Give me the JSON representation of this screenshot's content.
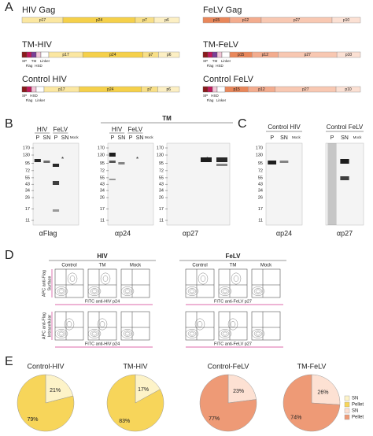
{
  "panel_a": {
    "label": "A",
    "constructs": [
      {
        "title": "HIV Gag",
        "family": "hiv",
        "prefix": [],
        "domains": [
          "p17",
          "p24",
          "p7",
          "p6"
        ]
      },
      {
        "title": "TM-HIV",
        "family": "hiv",
        "prefix": [
          "SP",
          "Flag",
          "TM",
          "HSD",
          "Linker"
        ],
        "domains": [
          "p17",
          "p24",
          "p7",
          "p6"
        ]
      },
      {
        "title": "Control HIV",
        "family": "hiv",
        "prefix": [
          "SP",
          "Flag",
          "HSD",
          "Linker"
        ],
        "domains": [
          "p17",
          "p24",
          "p7",
          "p6"
        ]
      },
      {
        "title": "FeLV Gag",
        "family": "felv",
        "prefix": [],
        "domains": [
          "p15",
          "p12",
          "p27",
          "p10"
        ]
      },
      {
        "title": "TM-FeLV",
        "family": "felv",
        "prefix": [
          "SP",
          "Flag",
          "TM",
          "HSD",
          "Linker"
        ],
        "domains": [
          "p15",
          "p12",
          "p27",
          "p10"
        ]
      },
      {
        "title": "Control FeLV",
        "family": "felv",
        "prefix": [
          "SP",
          "Flag",
          "HSD",
          "Linker"
        ],
        "domains": [
          "p15",
          "p12",
          "p27",
          "p10"
        ]
      }
    ]
  },
  "panel_b": {
    "label": "B",
    "group_title": "TM",
    "markers": [
      170,
      130,
      95,
      72,
      55,
      43,
      34,
      26,
      17,
      11
    ],
    "blots": [
      {
        "antibody": "αFlag",
        "groups": [
          "HIV",
          "FeLV"
        ],
        "lanes": [
          "P",
          "SN",
          "P",
          "SN",
          "Mock"
        ]
      },
      {
        "antibody": "αp24",
        "groups": [
          "HIV",
          "FeLV"
        ],
        "lanes": [
          "P",
          "SN",
          "P",
          "SN",
          "Mock"
        ]
      },
      {
        "antibody": "αp27",
        "groups": [],
        "lanes": []
      }
    ]
  },
  "panel_c": {
    "label": "C",
    "markers": [
      170,
      130,
      95,
      72,
      55,
      43,
      34,
      26,
      17,
      11
    ],
    "blots": [
      {
        "title": "Control HIV",
        "lanes": [
          "P",
          "SN",
          "Mock"
        ],
        "antibody": "αp24"
      },
      {
        "title": "Control FeLV",
        "lanes": [
          "P",
          "SN",
          "Mock"
        ],
        "antibody": "αp27"
      }
    ]
  },
  "panel_d": {
    "label": "D",
    "conditions": [
      "Control",
      "TM",
      "Mock"
    ],
    "groups": [
      {
        "title": "HIV",
        "x_axis": "FITC anti-HIV p24"
      },
      {
        "title": "FeLV",
        "x_axis": "FITC anti-FeLV p27"
      }
    ],
    "rows": [
      [
        "APC anti-Flag",
        "Surface"
      ],
      [
        "APC anti-Flag",
        "Intracellular"
      ]
    ]
  },
  "panel_e": {
    "label": "E",
    "pies": [
      {
        "title": "Control-HIV",
        "colors": [
          "#fdf3c8",
          "#f7d55a"
        ],
        "values": [
          21,
          79
        ],
        "value_labels": [
          "21%",
          "79%"
        ]
      },
      {
        "title": "TM-HIV",
        "colors": [
          "#fdf3c8",
          "#f7d55a"
        ],
        "values": [
          17,
          83
        ],
        "value_labels": [
          "17%",
          "83%"
        ]
      },
      {
        "title": "Control-FeLV",
        "colors": [
          "#fde1d3",
          "#ee9a76"
        ],
        "values": [
          23,
          77
        ],
        "value_labels": [
          "23%",
          "77%"
        ]
      },
      {
        "title": "TM-FeLV",
        "colors": [
          "#fde1d3",
          "#ee9a76"
        ],
        "values": [
          26,
          74
        ],
        "value_labels": [
          "26%",
          "74%"
        ]
      }
    ],
    "legend": [
      {
        "name": "SN",
        "color": "#fdf3c8"
      },
      {
        "name": "Pellet",
        "color": "#f7d55a"
      },
      {
        "name": "SN",
        "color": "#fde1d3"
      },
      {
        "name": "Pellet",
        "color": "#ee9a76"
      }
    ]
  }
}
